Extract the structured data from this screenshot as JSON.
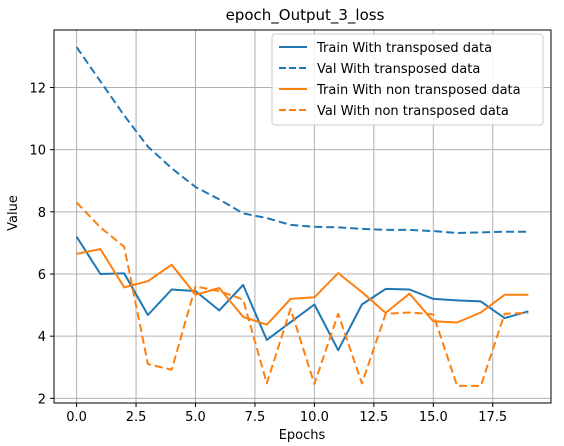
{
  "chart_data": {
    "type": "line",
    "title": "epoch_Output_3_loss",
    "xlabel": "Epochs",
    "ylabel": "Value",
    "x": [
      0,
      1,
      2,
      3,
      4,
      5,
      6,
      7,
      8,
      9,
      10,
      11,
      12,
      13,
      14,
      15,
      16,
      17,
      18,
      19
    ],
    "xlim": [
      -0.95,
      19.95
    ],
    "ylim": [
      1.85,
      13.85
    ],
    "xticks": [
      0.0,
      2.5,
      5.0,
      7.5,
      10.0,
      12.5,
      15.0,
      17.5
    ],
    "xtick_labels": [
      "0.0",
      "2.5",
      "5.0",
      "7.5",
      "10.0",
      "12.5",
      "15.0",
      "17.5"
    ],
    "yticks": [
      2,
      4,
      6,
      8,
      10,
      12
    ],
    "ytick_labels": [
      "2",
      "4",
      "6",
      "8",
      "10",
      "12"
    ],
    "grid": true,
    "legend_position": "top-right",
    "series": [
      {
        "name": "Train With transposed data",
        "color": "#1f77b4",
        "style": "solid",
        "values": [
          7.2,
          6.0,
          6.02,
          4.68,
          5.5,
          5.45,
          4.83,
          5.65,
          3.88,
          4.45,
          5.02,
          3.55,
          5.02,
          5.52,
          5.5,
          5.2,
          5.15,
          5.12,
          4.58,
          4.8
        ]
      },
      {
        "name": "Val With transposed data",
        "color": "#1f77b4",
        "style": "dashed",
        "values": [
          13.3,
          12.2,
          11.1,
          10.1,
          9.4,
          8.8,
          8.4,
          7.95,
          7.8,
          7.58,
          7.52,
          7.5,
          7.45,
          7.42,
          7.42,
          7.38,
          7.32,
          7.34,
          7.36,
          7.36
        ]
      },
      {
        "name": "Train With non transposed data",
        "color": "#ff7f0e",
        "style": "solid",
        "values": [
          6.65,
          6.8,
          5.57,
          5.77,
          6.3,
          5.33,
          5.55,
          4.62,
          4.37,
          5.2,
          5.25,
          6.03,
          5.42,
          4.75,
          5.37,
          4.48,
          4.44,
          4.76,
          5.33,
          5.33
        ]
      },
      {
        "name": "Val With non transposed data",
        "color": "#ff7f0e",
        "style": "dashed",
        "values": [
          8.3,
          7.5,
          6.88,
          3.1,
          2.92,
          5.6,
          5.45,
          5.18,
          2.48,
          4.88,
          2.46,
          4.72,
          2.48,
          4.72,
          4.76,
          4.7,
          2.4,
          2.4,
          4.72,
          4.75
        ]
      }
    ]
  }
}
